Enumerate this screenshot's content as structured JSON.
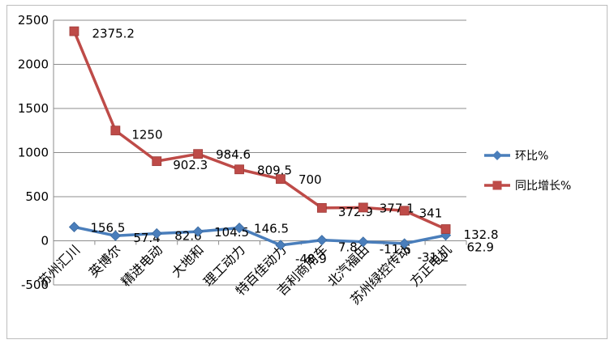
{
  "chart_data": {
    "type": "line",
    "categories": [
      "苏州汇川",
      "英博尔",
      "精进电动",
      "大地和",
      "理工动力",
      "特百佳动力",
      "吉利商用车",
      "北汽福田",
      "苏州绿控传动",
      "方正电机"
    ],
    "ylim": [
      -500,
      2500
    ],
    "yticks": [
      "-500",
      "0",
      "500",
      "1000",
      "1500",
      "2000",
      "2500"
    ],
    "grid": true,
    "legend_position": "right",
    "series": [
      {
        "name": "环比%",
        "color": "#4a7ebb",
        "marker": "diamond",
        "values": [
          156.5,
          57.4,
          82.6,
          104.5,
          146.5,
          -48.9,
          7.8,
          -11.6,
          -31.2,
          62.9
        ],
        "labels": [
          "156.5",
          "57.4",
          "82.6",
          "104.5",
          "146.5",
          "-48.9",
          "7.8",
          "-11.6",
          "-31.2",
          "62.9"
        ]
      },
      {
        "name": "同比增长%",
        "color": "#be4b48",
        "marker": "square",
        "values": [
          2375.2,
          1250,
          902.3,
          984.6,
          809.5,
          700,
          372.9,
          377.1,
          341,
          132.8
        ],
        "labels": [
          "2375.2",
          "1250",
          "902.3",
          "984.6",
          "809.5",
          "700",
          "372.9",
          "377.1",
          "341",
          "132.8"
        ]
      }
    ]
  }
}
